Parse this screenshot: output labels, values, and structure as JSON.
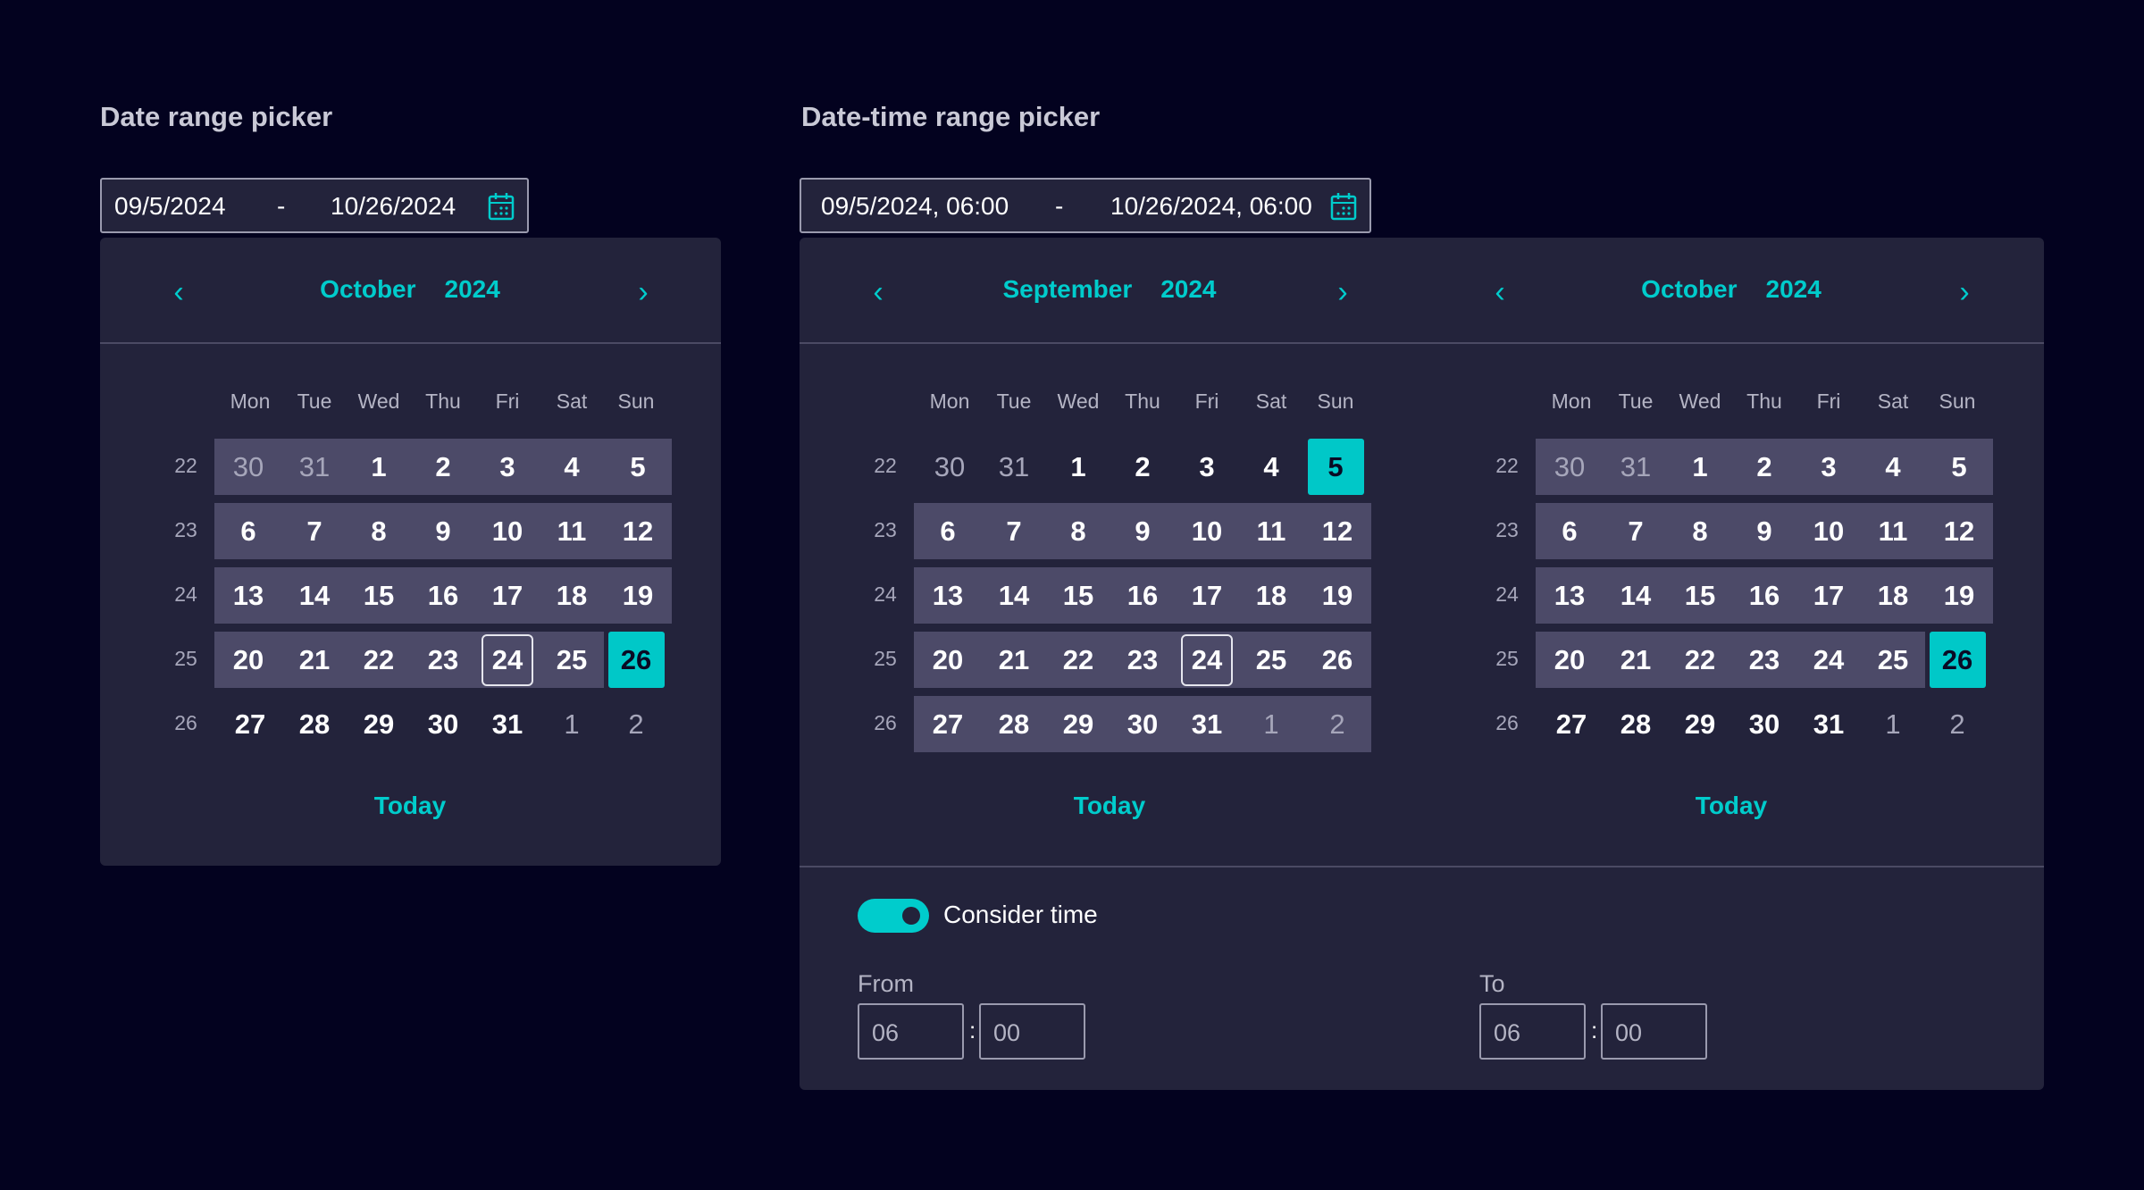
{
  "left": {
    "title": "Date range picker",
    "input": {
      "from": "09/5/2024",
      "sep": "-",
      "to": "10/26/2024",
      "icon": "calendar-icon"
    },
    "today_label": "Today"
  },
  "right": {
    "title": "Date-time range picker",
    "input": {
      "from": "09/5/2024, 06:00",
      "sep": "-",
      "to": "10/26/2024, 06:00",
      "icon": "calendar-icon"
    },
    "today_label": "Today",
    "consider_time": {
      "label": "Consider time",
      "on": true
    },
    "from": {
      "label": "From",
      "hours": "06",
      "minutes": "00"
    },
    "to": {
      "label": "To",
      "hours": "06",
      "minutes": "00"
    },
    "colon": ":"
  },
  "weekdays": [
    "Mon",
    "Tue",
    "Wed",
    "Thu",
    "Fri",
    "Sat",
    "Sun"
  ],
  "colors": {
    "accent": "#00cccc",
    "background": "#03021f",
    "panel": "#23233b",
    "range": "#4c4a68"
  },
  "calendars": [
    {
      "month": "October",
      "year": "2024",
      "weeks": [
        {
          "n": "22",
          "days": [
            {
              "d": "30",
              "o": 1,
              "r": 1
            },
            {
              "d": "31",
              "o": 1,
              "r": 1
            },
            {
              "d": "1",
              "r": 1
            },
            {
              "d": "2",
              "r": 1
            },
            {
              "d": "3",
              "r": 1
            },
            {
              "d": "4",
              "r": 1
            },
            {
              "d": "5",
              "r": 1
            }
          ]
        },
        {
          "n": "23",
          "days": [
            {
              "d": "6",
              "r": 1
            },
            {
              "d": "7",
              "r": 1
            },
            {
              "d": "8",
              "r": 1
            },
            {
              "d": "9",
              "r": 1
            },
            {
              "d": "10",
              "r": 1
            },
            {
              "d": "11",
              "r": 1
            },
            {
              "d": "12",
              "r": 1
            }
          ]
        },
        {
          "n": "24",
          "days": [
            {
              "d": "13",
              "r": 1
            },
            {
              "d": "14",
              "r": 1
            },
            {
              "d": "15",
              "r": 1
            },
            {
              "d": "16",
              "r": 1
            },
            {
              "d": "17",
              "r": 1
            },
            {
              "d": "18",
              "r": 1
            },
            {
              "d": "19",
              "r": 1
            }
          ]
        },
        {
          "n": "25",
          "days": [
            {
              "d": "20",
              "r": 1
            },
            {
              "d": "21",
              "r": 1
            },
            {
              "d": "22",
              "r": 1
            },
            {
              "d": "23",
              "r": 1
            },
            {
              "d": "24",
              "r": 1,
              "t": 1
            },
            {
              "d": "25",
              "r": 1
            },
            {
              "d": "26",
              "s": 1
            }
          ]
        },
        {
          "n": "26",
          "days": [
            {
              "d": "27"
            },
            {
              "d": "28"
            },
            {
              "d": "29"
            },
            {
              "d": "30"
            },
            {
              "d": "31"
            },
            {
              "d": "1",
              "o": 1
            },
            {
              "d": "2",
              "o": 1
            }
          ]
        }
      ]
    },
    {
      "month": "September",
      "year": "2024",
      "weeks": [
        {
          "n": "22",
          "days": [
            {
              "d": "30",
              "o": 1
            },
            {
              "d": "31",
              "o": 1
            },
            {
              "d": "1"
            },
            {
              "d": "2"
            },
            {
              "d": "3"
            },
            {
              "d": "4"
            },
            {
              "d": "5",
              "s": 1
            }
          ]
        },
        {
          "n": "23",
          "days": [
            {
              "d": "6",
              "r": 1
            },
            {
              "d": "7",
              "r": 1
            },
            {
              "d": "8",
              "r": 1
            },
            {
              "d": "9",
              "r": 1
            },
            {
              "d": "10",
              "r": 1
            },
            {
              "d": "11",
              "r": 1
            },
            {
              "d": "12",
              "r": 1
            }
          ]
        },
        {
          "n": "24",
          "days": [
            {
              "d": "13",
              "r": 1
            },
            {
              "d": "14",
              "r": 1
            },
            {
              "d": "15",
              "r": 1
            },
            {
              "d": "16",
              "r": 1
            },
            {
              "d": "17",
              "r": 1
            },
            {
              "d": "18",
              "r": 1
            },
            {
              "d": "19",
              "r": 1
            }
          ]
        },
        {
          "n": "25",
          "days": [
            {
              "d": "20",
              "r": 1
            },
            {
              "d": "21",
              "r": 1
            },
            {
              "d": "22",
              "r": 1
            },
            {
              "d": "23",
              "r": 1
            },
            {
              "d": "24",
              "r": 1,
              "t": 1
            },
            {
              "d": "25",
              "r": 1
            },
            {
              "d": "26",
              "r": 1
            }
          ]
        },
        {
          "n": "26",
          "days": [
            {
              "d": "27",
              "r": 1
            },
            {
              "d": "28",
              "r": 1
            },
            {
              "d": "29",
              "r": 1
            },
            {
              "d": "30",
              "r": 1
            },
            {
              "d": "31",
              "r": 1
            },
            {
              "d": "1",
              "o": 1,
              "r": 1
            },
            {
              "d": "2",
              "o": 1,
              "r": 1
            }
          ]
        }
      ]
    },
    {
      "month": "October",
      "year": "2024",
      "weeks": [
        {
          "n": "22",
          "days": [
            {
              "d": "30",
              "o": 1,
              "r": 1
            },
            {
              "d": "31",
              "o": 1,
              "r": 1
            },
            {
              "d": "1",
              "r": 1
            },
            {
              "d": "2",
              "r": 1
            },
            {
              "d": "3",
              "r": 1
            },
            {
              "d": "4",
              "r": 1
            },
            {
              "d": "5",
              "r": 1
            }
          ]
        },
        {
          "n": "23",
          "days": [
            {
              "d": "6",
              "r": 1
            },
            {
              "d": "7",
              "r": 1
            },
            {
              "d": "8",
              "r": 1
            },
            {
              "d": "9",
              "r": 1
            },
            {
              "d": "10",
              "r": 1
            },
            {
              "d": "11",
              "r": 1
            },
            {
              "d": "12",
              "r": 1
            }
          ]
        },
        {
          "n": "24",
          "days": [
            {
              "d": "13",
              "r": 1
            },
            {
              "d": "14",
              "r": 1
            },
            {
              "d": "15",
              "r": 1
            },
            {
              "d": "16",
              "r": 1
            },
            {
              "d": "17",
              "r": 1
            },
            {
              "d": "18",
              "r": 1
            },
            {
              "d": "19",
              "r": 1
            }
          ]
        },
        {
          "n": "25",
          "days": [
            {
              "d": "20",
              "r": 1
            },
            {
              "d": "21",
              "r": 1
            },
            {
              "d": "22",
              "r": 1
            },
            {
              "d": "23",
              "r": 1
            },
            {
              "d": "24",
              "r": 1
            },
            {
              "d": "25",
              "r": 1
            },
            {
              "d": "26",
              "s": 1
            }
          ]
        },
        {
          "n": "26",
          "days": [
            {
              "d": "27"
            },
            {
              "d": "28"
            },
            {
              "d": "29"
            },
            {
              "d": "30"
            },
            {
              "d": "31"
            },
            {
              "d": "1",
              "o": 1
            },
            {
              "d": "2",
              "o": 1
            }
          ]
        }
      ]
    }
  ]
}
